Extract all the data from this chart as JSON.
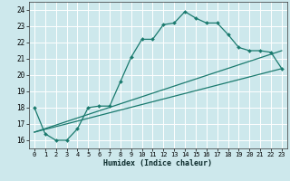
{
  "xlabel": "Humidex (Indice chaleur)",
  "background_color": "#cde8ec",
  "grid_color": "#ffffff",
  "line_color": "#1a7a6e",
  "xlim": [
    -0.5,
    23.5
  ],
  "ylim": [
    15.5,
    24.5
  ],
  "yticks": [
    16,
    17,
    18,
    19,
    20,
    21,
    22,
    23,
    24
  ],
  "xticks": [
    0,
    1,
    2,
    3,
    4,
    5,
    6,
    7,
    8,
    9,
    10,
    11,
    12,
    13,
    14,
    15,
    16,
    17,
    18,
    19,
    20,
    21,
    22,
    23
  ],
  "line1_x": [
    0,
    1,
    2,
    3,
    4,
    5,
    6,
    7,
    8,
    9,
    10,
    11,
    12,
    13,
    14,
    15,
    16,
    17,
    18,
    19,
    20,
    21,
    22,
    23
  ],
  "line1_y": [
    18.0,
    16.4,
    16.0,
    16.0,
    16.7,
    18.0,
    18.1,
    18.1,
    19.6,
    21.1,
    22.2,
    22.2,
    23.1,
    23.2,
    23.9,
    23.5,
    23.2,
    23.2,
    22.5,
    21.7,
    21.5,
    21.5,
    21.4,
    20.4
  ],
  "line2_x": [
    0,
    23
  ],
  "line2_y": [
    16.5,
    21.5
  ],
  "line3_x": [
    0,
    23
  ],
  "line3_y": [
    16.5,
    20.4
  ]
}
